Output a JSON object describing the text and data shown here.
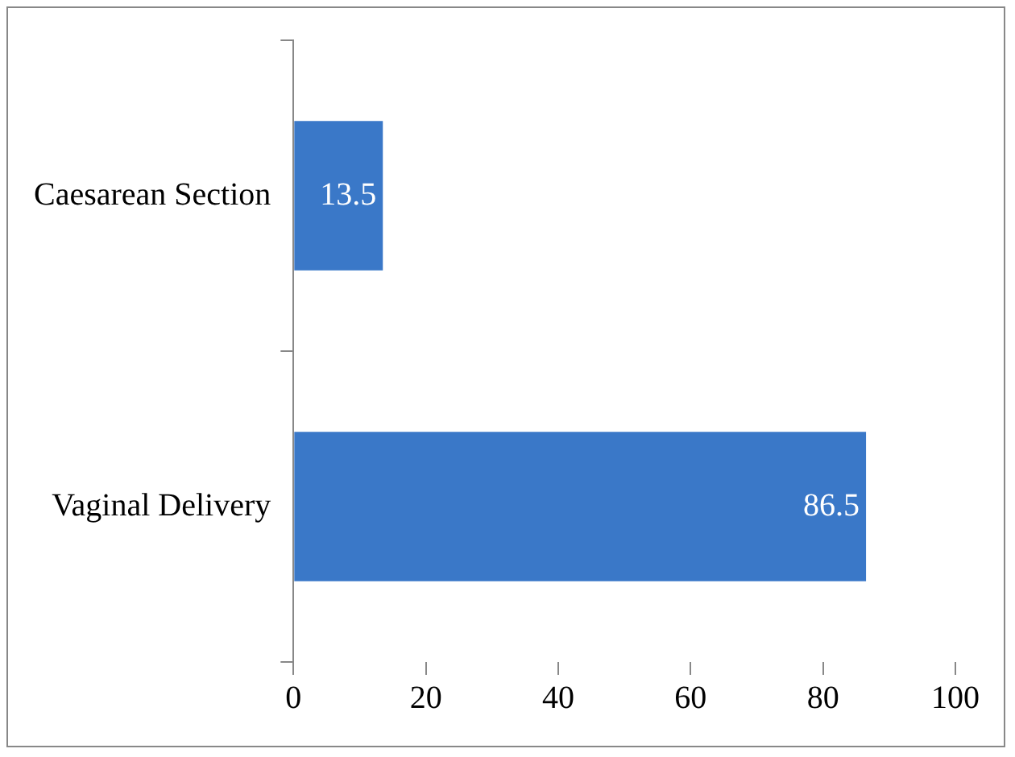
{
  "chart_data": {
    "type": "bar",
    "orientation": "horizontal",
    "categories": [
      "Caesarean Section",
      "Vaginal Delivery"
    ],
    "values": [
      13.5,
      86.5
    ],
    "color": "#3a78c8",
    "xlim": [
      0,
      100
    ],
    "xticks": [
      0,
      20,
      40,
      60,
      80,
      100
    ],
    "grid": false,
    "legend": false,
    "data_labels": true
  }
}
